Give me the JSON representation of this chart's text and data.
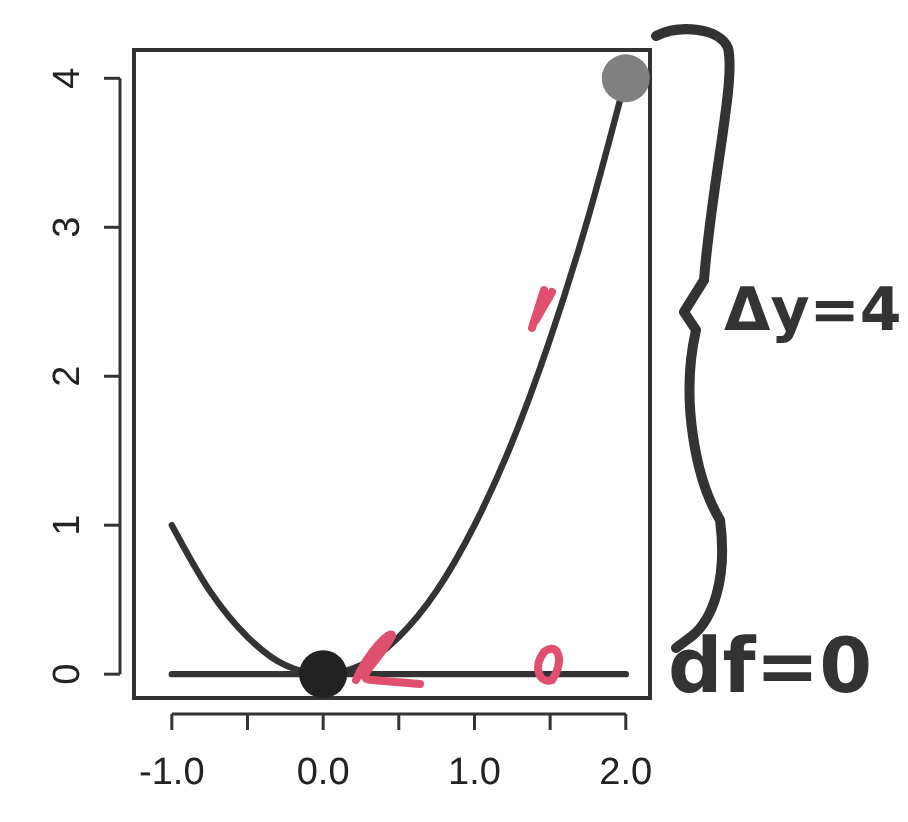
{
  "chart_data": {
    "type": "line",
    "xlim": [
      -1.25,
      2.16
    ],
    "ylim": [
      -0.16,
      4.19
    ],
    "xticks": [
      {
        "value": -1,
        "label": "-1.0"
      },
      {
        "value": -0.5,
        "label": null
      },
      {
        "value": 0,
        "label": "0.0"
      },
      {
        "value": 0.5,
        "label": null
      },
      {
        "value": 1,
        "label": "1.0"
      },
      {
        "value": 1.5,
        "label": null
      },
      {
        "value": 2,
        "label": "2.0"
      }
    ],
    "yticks": [
      0,
      1,
      2,
      3,
      4
    ],
    "grid": false,
    "line_style": "solid",
    "series": [
      {
        "color": "#333333",
        "x": [
          -1,
          -0.75,
          -0.5,
          -0.25,
          0,
          0.25,
          0.5,
          0.75,
          1,
          1.25,
          1.5,
          1.75,
          2
        ],
        "values": [
          1,
          0.56,
          0.25,
          0.06,
          0,
          0.06,
          0.25,
          0.56,
          1,
          1.56,
          2.25,
          3.06,
          4
        ]
      },
      {
        "color": "#333333",
        "x": [
          -1,
          2
        ],
        "values": [
          0,
          0
        ]
      },
      {
        "type": "scatter",
        "colors": [
          "#222222",
          "#808080"
        ],
        "marker": "circle",
        "x": [
          0,
          2
        ],
        "values": [
          0,
          4
        ]
      }
    ],
    "annotations": [
      "Δy=4",
      "df=0"
    ]
  }
}
